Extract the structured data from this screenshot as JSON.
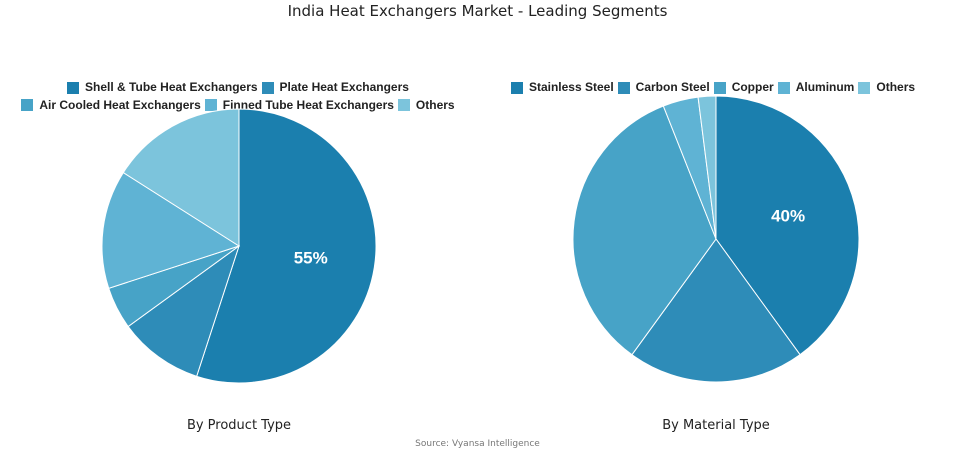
{
  "title": "India Heat Exchangers Market - Leading Segments",
  "source": "Source: Vyansa Intelligence",
  "chart_data": [
    {
      "type": "pie",
      "subtitle": "By Product Type",
      "legend_position": "top",
      "categories": [
        "Shell & Tube Heat Exchangers",
        "Plate Heat Exchangers",
        "Air Cooled Heat Exchangers",
        "Finned Tube Heat Exchangers",
        "Others"
      ],
      "values": [
        55,
        10,
        5,
        14,
        16
      ],
      "colors": [
        "#1b7fae",
        "#2e8cb8",
        "#47a3c7",
        "#5fb3d4",
        "#7cc4dc"
      ],
      "data_labels": [
        "55%",
        "",
        "",
        "",
        ""
      ]
    },
    {
      "type": "pie",
      "subtitle": "By Material Type",
      "legend_position": "top",
      "categories": [
        "Stainless Steel",
        "Carbon Steel",
        "Copper",
        "Aluminum",
        "Others"
      ],
      "values": [
        40,
        20,
        34,
        4,
        2
      ],
      "colors": [
        "#1b7fae",
        "#2e8cb8",
        "#47a3c7",
        "#5fb3d4",
        "#7cc4dc"
      ],
      "data_labels": [
        "40%",
        "",
        "",
        "",
        ""
      ]
    }
  ]
}
